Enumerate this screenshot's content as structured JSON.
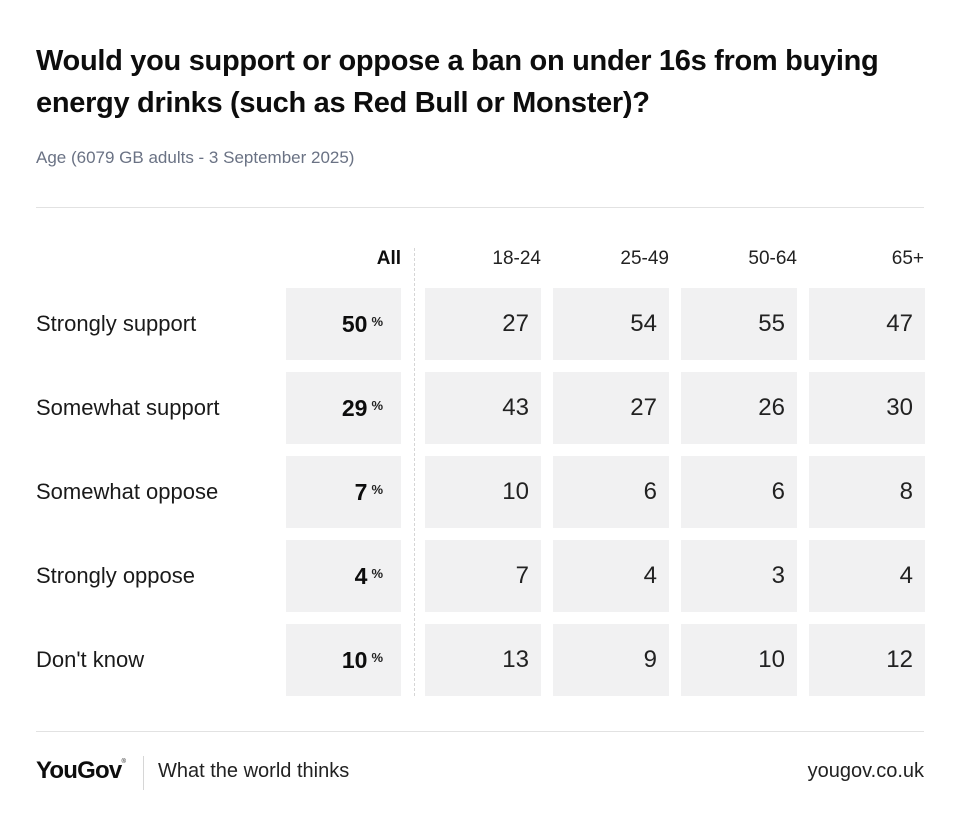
{
  "title": "Would you support or oppose a ban on under 16s from buying energy drinks (such as Red Bull or Monster)?",
  "subtitle": "Age (6079 GB adults - 3 September 2025)",
  "footer": {
    "logo": "YouGov",
    "logo_mark": "®",
    "tagline": "What the world thinks",
    "url": "yougov.co.uk"
  },
  "chart_data": {
    "type": "table",
    "columns": [
      "All",
      "18-24",
      "25-49",
      "50-64",
      "65+"
    ],
    "unit": "%",
    "rows": [
      {
        "label": "Strongly support",
        "all": 50,
        "values": [
          27,
          54,
          55,
          47
        ]
      },
      {
        "label": "Somewhat support",
        "all": 29,
        "values": [
          43,
          27,
          26,
          30
        ]
      },
      {
        "label": "Somewhat oppose",
        "all": 7,
        "values": [
          10,
          6,
          6,
          8
        ]
      },
      {
        "label": "Strongly oppose",
        "all": 4,
        "values": [
          7,
          4,
          3,
          4
        ]
      },
      {
        "label": "Don't know",
        "all": 10,
        "values": [
          13,
          9,
          10,
          12
        ]
      }
    ]
  },
  "colors": {
    "cell_background": "#f1f1f2",
    "subtitle": "#6a7284",
    "text": "#111111"
  }
}
